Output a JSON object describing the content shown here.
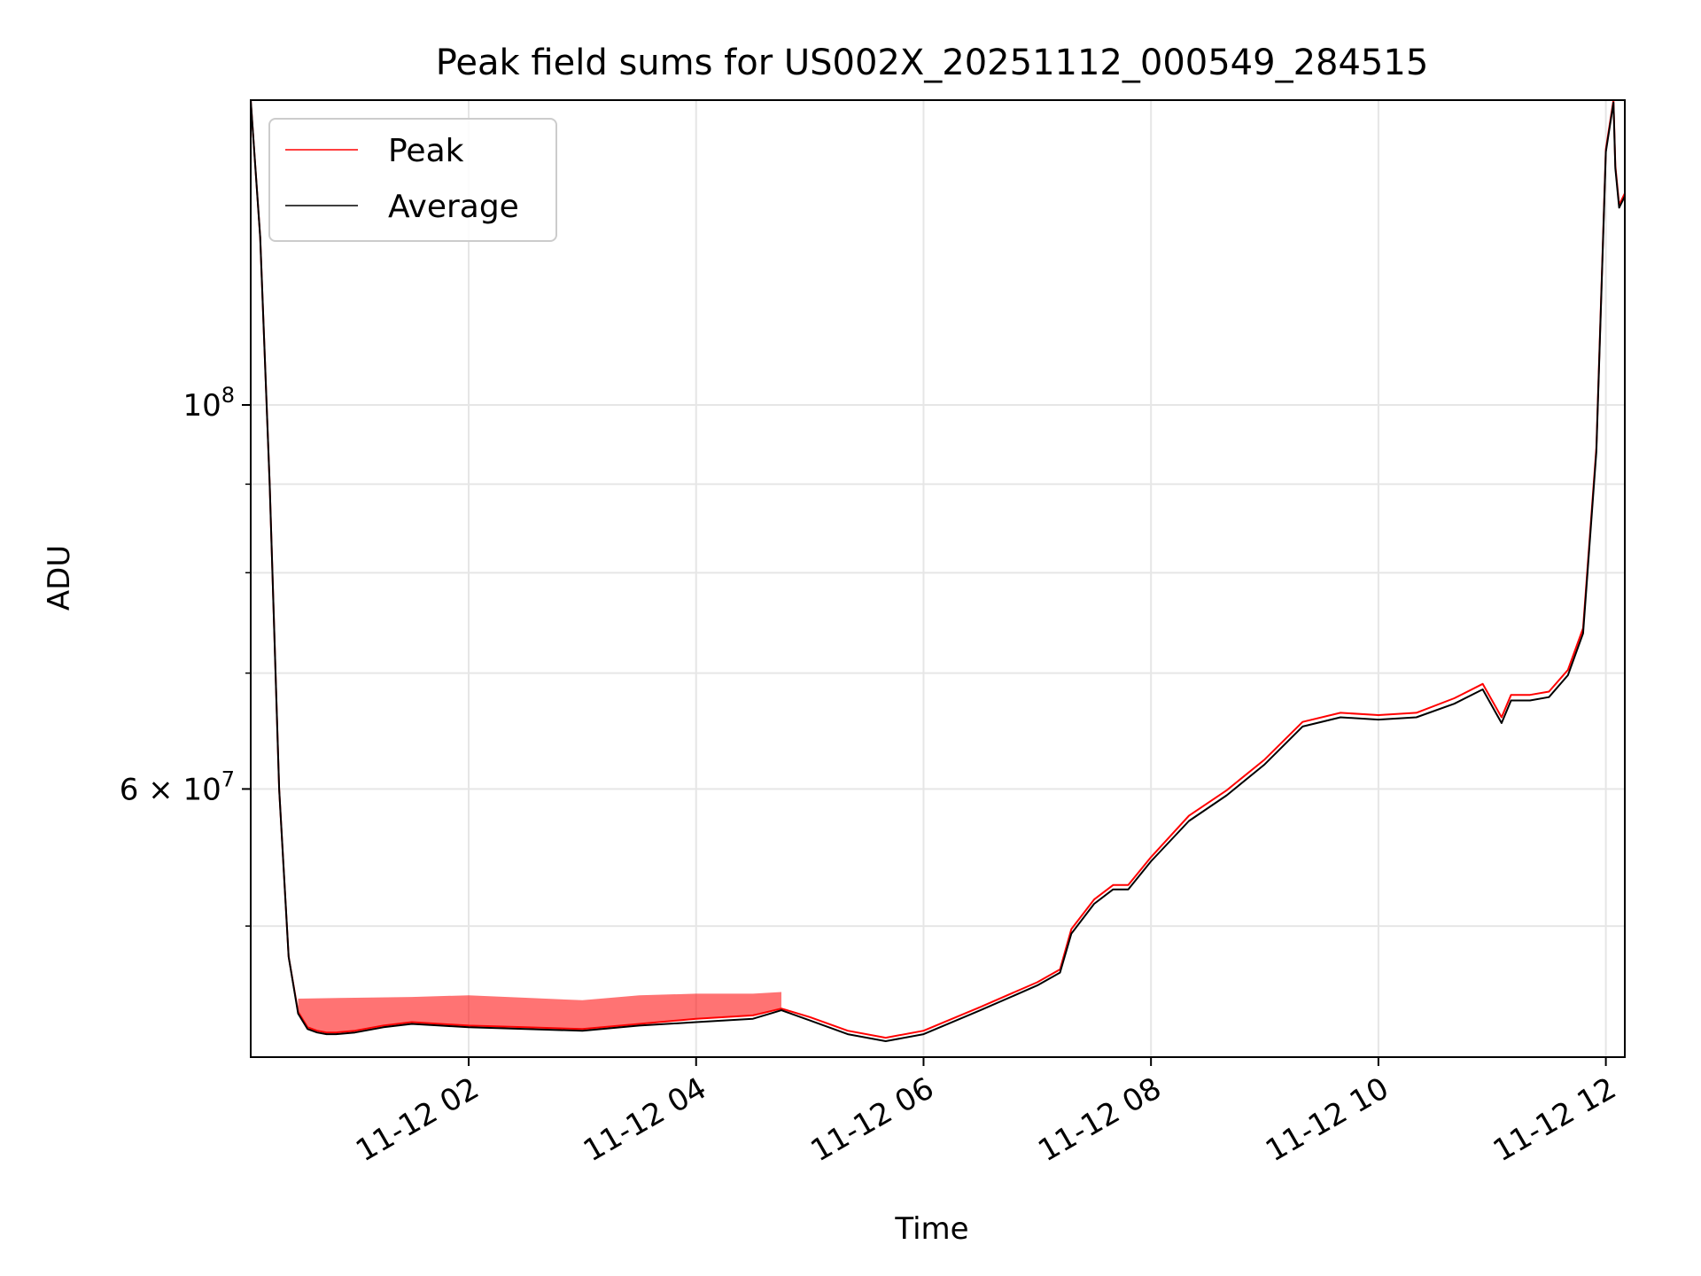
{
  "chart_data": {
    "type": "line",
    "title": "Peak field sums for US002X_20251112_000549_284515",
    "xlabel": "Time",
    "ylabel": "ADU",
    "y_scale": "log",
    "grid": true,
    "legend_position": "top-left",
    "x_range": [
      "2025-11-12 00:05",
      "2025-11-12 12:10"
    ],
    "ylim": [
      42000000,
      150000000
    ],
    "x_ticks": [
      {
        "value": "2025-11-12 02:00",
        "label": "11-12 02"
      },
      {
        "value": "2025-11-12 04:00",
        "label": "11-12 04"
      },
      {
        "value": "2025-11-12 06:00",
        "label": "11-12 06"
      },
      {
        "value": "2025-11-12 08:00",
        "label": "11-12 08"
      },
      {
        "value": "2025-11-12 10:00",
        "label": "11-12 10"
      },
      {
        "value": "2025-11-12 12:00",
        "label": "11-12 12"
      }
    ],
    "y_major_ticks": [
      {
        "value": 100000000,
        "label_base": "10",
        "label_exp": "8",
        "label_mult": ""
      },
      {
        "value": 60000000,
        "label_base": "10",
        "label_exp": "7",
        "label_mult": "6 × "
      }
    ],
    "y_minor_ticks": [
      50000000,
      70000000,
      80000000,
      90000000
    ],
    "series": [
      {
        "name": "Average",
        "color": "#000000",
        "x": [
          "2025-11-12 00:05",
          "2025-11-12 00:10",
          "2025-11-12 00:15",
          "2025-11-12 00:20",
          "2025-11-12 00:25",
          "2025-11-12 00:30",
          "2025-11-12 00:35",
          "2025-11-12 00:40",
          "2025-11-12 00:45",
          "2025-11-12 00:50",
          "2025-11-12 01:00",
          "2025-11-12 01:15",
          "2025-11-12 01:30",
          "2025-11-12 01:45",
          "2025-11-12 02:00",
          "2025-11-12 02:30",
          "2025-11-12 03:00",
          "2025-11-12 03:30",
          "2025-11-12 04:00",
          "2025-11-12 04:30",
          "2025-11-12 04:45",
          "2025-11-12 05:00",
          "2025-11-12 05:20",
          "2025-11-12 05:40",
          "2025-11-12 06:00",
          "2025-11-12 06:30",
          "2025-11-12 07:00",
          "2025-11-12 07:12",
          "2025-11-12 07:18",
          "2025-11-12 07:30",
          "2025-11-12 07:40",
          "2025-11-12 07:48",
          "2025-11-12 08:00",
          "2025-11-12 08:20",
          "2025-11-12 08:40",
          "2025-11-12 09:00",
          "2025-11-12 09:20",
          "2025-11-12 09:40",
          "2025-11-12 10:00",
          "2025-11-12 10:20",
          "2025-11-12 10:40",
          "2025-11-12 10:55",
          "2025-11-12 11:05",
          "2025-11-12 11:10",
          "2025-11-12 11:20",
          "2025-11-12 11:30",
          "2025-11-12 11:40",
          "2025-11-12 11:48",
          "2025-11-12 11:55",
          "2025-11-12 12:00",
          "2025-11-12 12:04",
          "2025-11-12 12:05",
          "2025-11-12 12:07",
          "2025-11-12 12:10"
        ],
        "y": [
          150000000,
          125000000,
          90000000,
          60000000,
          48000000,
          44500000,
          43600000,
          43400000,
          43300000,
          43300000,
          43400000,
          43700000,
          43900000,
          43800000,
          43700000,
          43600000,
          43500000,
          43800000,
          44000000,
          44200000,
          44700000,
          44100000,
          43300000,
          42900000,
          43300000,
          44700000,
          46200000,
          47000000,
          49500000,
          51500000,
          52500000,
          52500000,
          54500000,
          57500000,
          59500000,
          62000000,
          65200000,
          66000000,
          65800000,
          66000000,
          67200000,
          68500000,
          65500000,
          67500000,
          67500000,
          67800000,
          69800000,
          73800000,
          94000000,
          140000000,
          149500000,
          137000000,
          130000000,
          132000000
        ]
      },
      {
        "name": "Peak",
        "color": "#ff0000",
        "x": [
          "2025-11-12 00:05",
          "2025-11-12 00:10",
          "2025-11-12 00:15",
          "2025-11-12 00:20",
          "2025-11-12 00:25",
          "2025-11-12 00:30",
          "2025-11-12 00:35",
          "2025-11-12 00:40",
          "2025-11-12 00:45",
          "2025-11-12 00:50",
          "2025-11-12 01:00",
          "2025-11-12 01:15",
          "2025-11-12 01:30",
          "2025-11-12 01:45",
          "2025-11-12 02:00",
          "2025-11-12 02:30",
          "2025-11-12 03:00",
          "2025-11-12 03:30",
          "2025-11-12 04:00",
          "2025-11-12 04:30",
          "2025-11-12 04:45",
          "2025-11-12 05:00",
          "2025-11-12 05:20",
          "2025-11-12 05:40",
          "2025-11-12 06:00",
          "2025-11-12 06:30",
          "2025-11-12 07:00",
          "2025-11-12 07:12",
          "2025-11-12 07:18",
          "2025-11-12 07:30",
          "2025-11-12 07:40",
          "2025-11-12 07:48",
          "2025-11-12 08:00",
          "2025-11-12 08:20",
          "2025-11-12 08:40",
          "2025-11-12 09:00",
          "2025-11-12 09:20",
          "2025-11-12 09:40",
          "2025-11-12 10:00",
          "2025-11-12 10:20",
          "2025-11-12 10:40",
          "2025-11-12 10:55",
          "2025-11-12 11:05",
          "2025-11-12 11:10",
          "2025-11-12 11:20",
          "2025-11-12 11:30",
          "2025-11-12 11:40",
          "2025-11-12 11:48",
          "2025-11-12 11:55",
          "2025-11-12 12:00",
          "2025-11-12 12:04",
          "2025-11-12 12:05",
          "2025-11-12 12:07",
          "2025-11-12 12:10"
        ],
        "y": [
          150000000,
          125000000,
          90000000,
          60000000,
          48000000,
          44600000,
          43700000,
          43500000,
          43400000,
          43400000,
          43500000,
          43800000,
          44000000,
          43900000,
          43800000,
          43700000,
          43600000,
          43900000,
          44200000,
          44400000,
          44800000,
          44300000,
          43500000,
          43100000,
          43500000,
          44900000,
          46400000,
          47200000,
          49800000,
          51800000,
          52800000,
          52800000,
          54800000,
          57900000,
          59900000,
          62400000,
          65600000,
          66400000,
          66200000,
          66400000,
          67700000,
          69000000,
          66000000,
          68000000,
          68000000,
          68300000,
          70300000,
          74300000,
          94500000,
          140500000,
          150000000,
          137500000,
          130500000,
          132500000
        ],
        "upper_envelope": {
          "x": [
            "2025-11-12 00:30",
            "2025-11-12 01:00",
            "2025-11-12 01:30",
            "2025-11-12 02:00",
            "2025-11-12 02:30",
            "2025-11-12 03:00",
            "2025-11-12 03:30",
            "2025-11-12 04:00",
            "2025-11-12 04:30",
            "2025-11-12 04:45"
          ],
          "y": [
            45400000,
            45450000,
            45500000,
            45600000,
            45450000,
            45300000,
            45600000,
            45700000,
            45700000,
            45800000
          ]
        }
      }
    ]
  }
}
